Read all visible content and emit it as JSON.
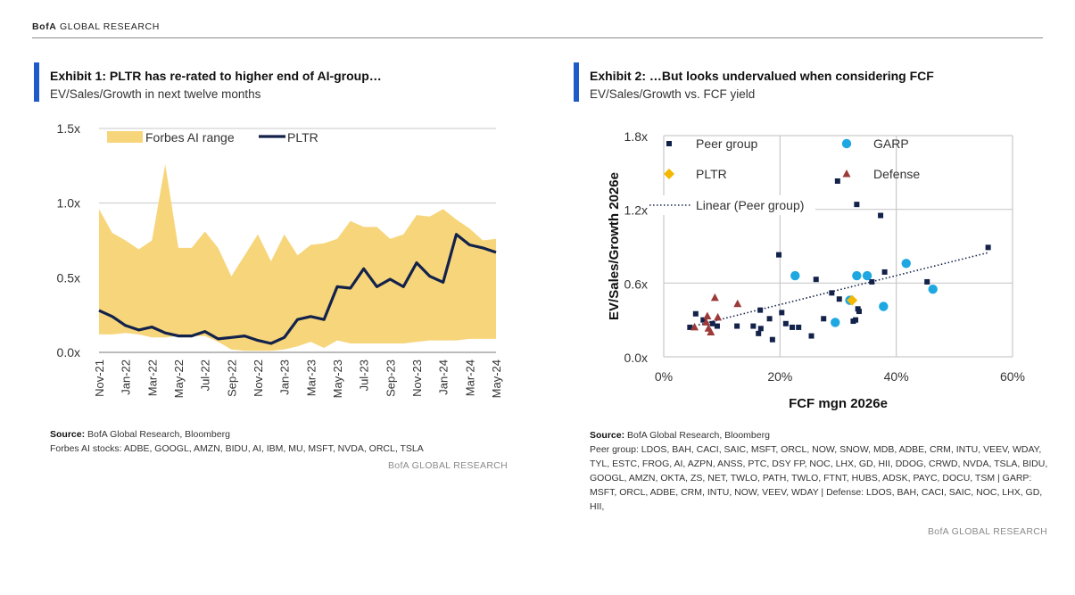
{
  "header": {
    "brand": "BofA",
    "label": "GLOBAL RESEARCH"
  },
  "colors": {
    "accent_bar": "#1f5bc8",
    "range_fill": "#f7d57a",
    "pltr_line": "#13224b",
    "peer": "#13224b",
    "garp": "#1ea7e1",
    "pltr_marker": "#f5b800",
    "defense": "#9c3a3a"
  },
  "exhibit1": {
    "title": "Exhibit 1: PLTR has re-rated to higher end of AI-group…",
    "subtitle": "EV/Sales/Growth in next twelve months",
    "source_label": "Source:",
    "source_text": " BofA Global Research, Bloomberg",
    "note": "Forbes AI stocks: ADBE, GOOGL, AMZN, BIDU, AI, IBM, MU, MSFT, NVDA, ORCL, TSLA",
    "watermark": "BofA GLOBAL RESEARCH"
  },
  "exhibit2": {
    "title": "Exhibit 2: …But looks undervalued when considering FCF",
    "subtitle": "EV/Sales/Growth vs. FCF yield",
    "source_label": "Source:",
    "source_text": " BofA Global Research, Bloomberg",
    "note": "Peer group: LDOS, BAH, CACI, SAIC, MSFT, ORCL, NOW, SNOW, MDB, ADBE, CRM, INTU, VEEV, WDAY, TYL, ESTC, FROG, AI, AZPN, ANSS, PTC, DSY FP, NOC, LHX, GD, HII, DDOG, CRWD, NVDA, TSLA, BIDU, GOOGL, AMZN, OKTA, ZS, NET, TWLO, PATH, TWLO, FTNT, HUBS, ADSK, PAYC, DOCU, TSM | GARP: MSFT, ORCL, ADBE, CRM, INTU, NOW, VEEV, WDAY | Defense: LDOS, BAH, CACI, SAIC, NOC, LHX, GD, HII,",
    "watermark": "BofA GLOBAL RESEARCH"
  },
  "chart_data": [
    {
      "type": "area",
      "title": "Exhibit 1: PLTR has re-rated to higher end of AI-group…",
      "subtitle": "EV/Sales/Growth in next twelve months",
      "y_ticks": [
        "0.0x",
        "0.5x",
        "1.0x",
        "1.5x"
      ],
      "ylim": [
        0,
        1.5
      ],
      "x_tick_labels": [
        "Nov-21",
        "Jan-22",
        "Mar-22",
        "May-22",
        "Jul-22",
        "Sep-22",
        "Nov-22",
        "Jan-23",
        "Mar-23",
        "May-23",
        "Jul-23",
        "Sep-23",
        "Nov-23",
        "Jan-24",
        "Mar-24",
        "May-24"
      ],
      "x": [
        "Nov-21",
        "Dec-21",
        "Jan-22",
        "Feb-22",
        "Mar-22",
        "Apr-22",
        "May-22",
        "Jun-22",
        "Jul-22",
        "Aug-22",
        "Sep-22",
        "Oct-22",
        "Nov-22",
        "Dec-22",
        "Jan-23",
        "Feb-23",
        "Mar-23",
        "Apr-23",
        "May-23",
        "Jun-23",
        "Jul-23",
        "Aug-23",
        "Sep-23",
        "Oct-23",
        "Nov-23",
        "Dec-23",
        "Jan-24",
        "Feb-24",
        "Mar-24",
        "Apr-24",
        "May-24"
      ],
      "grid": true,
      "legend_position": "top-left",
      "series": [
        {
          "name": "Forbes AI range",
          "kind": "band",
          "high": [
            0.96,
            0.8,
            0.75,
            0.69,
            0.75,
            1.26,
            0.7,
            0.7,
            0.81,
            0.7,
            0.51,
            0.65,
            0.79,
            0.61,
            0.79,
            0.65,
            0.72,
            0.73,
            0.76,
            0.88,
            0.84,
            0.84,
            0.76,
            0.79,
            0.92,
            0.91,
            0.96,
            0.89,
            0.83,
            0.75,
            0.76
          ],
          "low": [
            0.12,
            0.12,
            0.13,
            0.12,
            0.1,
            0.1,
            0.11,
            0.11,
            0.11,
            0.07,
            0.02,
            0.01,
            0.01,
            0.01,
            0.02,
            0.04,
            0.07,
            0.03,
            0.08,
            0.06,
            0.06,
            0.06,
            0.06,
            0.06,
            0.07,
            0.08,
            0.08,
            0.08,
            0.09,
            0.09,
            0.09
          ]
        },
        {
          "name": "PLTR",
          "kind": "line",
          "values": [
            0.28,
            0.24,
            0.18,
            0.15,
            0.17,
            0.13,
            0.11,
            0.11,
            0.14,
            0.09,
            0.1,
            0.11,
            0.08,
            0.06,
            0.1,
            0.22,
            0.24,
            0.22,
            0.44,
            0.43,
            0.56,
            0.44,
            0.49,
            0.44,
            0.6,
            0.51,
            0.47,
            0.79,
            0.72,
            0.7,
            0.67
          ]
        }
      ]
    },
    {
      "type": "scatter",
      "title": "Exhibit 2: …But looks undervalued when considering FCF",
      "subtitle": "EV/Sales/Growth vs. FCF yield",
      "xlabel": "FCF mgn 2026e",
      "ylabel": "EV/Sales/Growth 2026e",
      "x_ticks": [
        "0%",
        "20%",
        "40%",
        "60%"
      ],
      "y_ticks": [
        "0.0x",
        "0.6x",
        "1.2x",
        "1.8x"
      ],
      "xlim": [
        0,
        60
      ],
      "ylim": [
        0,
        1.8
      ],
      "grid": true,
      "legend_position": "top",
      "series": [
        {
          "name": "Peer group",
          "marker": "square",
          "points": [
            [
              55.8,
              0.89
            ],
            [
              37.3,
              1.15
            ],
            [
              33.2,
              1.24
            ],
            [
              29.9,
              1.43
            ],
            [
              19.8,
              0.83
            ],
            [
              45.3,
              0.61
            ],
            [
              38.0,
              0.69
            ],
            [
              35.8,
              0.61
            ],
            [
              26.2,
              0.63
            ],
            [
              28.9,
              0.52
            ],
            [
              30.2,
              0.47
            ],
            [
              33.4,
              0.39
            ],
            [
              33.6,
              0.37
            ],
            [
              27.5,
              0.31
            ],
            [
              33.0,
              0.3
            ],
            [
              32.6,
              0.29
            ],
            [
              23.2,
              0.24
            ],
            [
              20.3,
              0.36
            ],
            [
              18.2,
              0.31
            ],
            [
              16.6,
              0.38
            ],
            [
              21.0,
              0.27
            ],
            [
              22.1,
              0.24
            ],
            [
              25.4,
              0.17
            ],
            [
              18.7,
              0.14
            ],
            [
              16.7,
              0.23
            ],
            [
              16.3,
              0.19
            ],
            [
              15.4,
              0.25
            ],
            [
              12.6,
              0.25
            ],
            [
              9.2,
              0.25
            ],
            [
              8.4,
              0.27
            ],
            [
              6.8,
              0.3
            ],
            [
              5.5,
              0.35
            ],
            [
              4.5,
              0.24
            ]
          ]
        },
        {
          "name": "GARP",
          "marker": "circle",
          "points": [
            [
              22.6,
              0.66
            ],
            [
              33.2,
              0.66
            ],
            [
              35.0,
              0.66
            ],
            [
              41.7,
              0.76
            ],
            [
              46.3,
              0.55
            ],
            [
              29.5,
              0.28
            ],
            [
              37.8,
              0.41
            ],
            [
              32.0,
              0.46
            ]
          ]
        },
        {
          "name": "PLTR",
          "marker": "diamond",
          "points": [
            [
              32.4,
              0.46
            ]
          ]
        },
        {
          "name": "Defense",
          "marker": "triangle",
          "points": [
            [
              8.8,
              0.48
            ],
            [
              12.7,
              0.43
            ],
            [
              9.3,
              0.32
            ],
            [
              7.5,
              0.33
            ],
            [
              7.3,
              0.28
            ],
            [
              7.7,
              0.23
            ],
            [
              8.1,
              0.2
            ],
            [
              5.3,
              0.24
            ]
          ]
        },
        {
          "name": "Linear (Peer group)",
          "kind": "trendline",
          "points": [
            [
              6,
              0.26
            ],
            [
              56,
              0.85
            ]
          ]
        }
      ]
    }
  ]
}
